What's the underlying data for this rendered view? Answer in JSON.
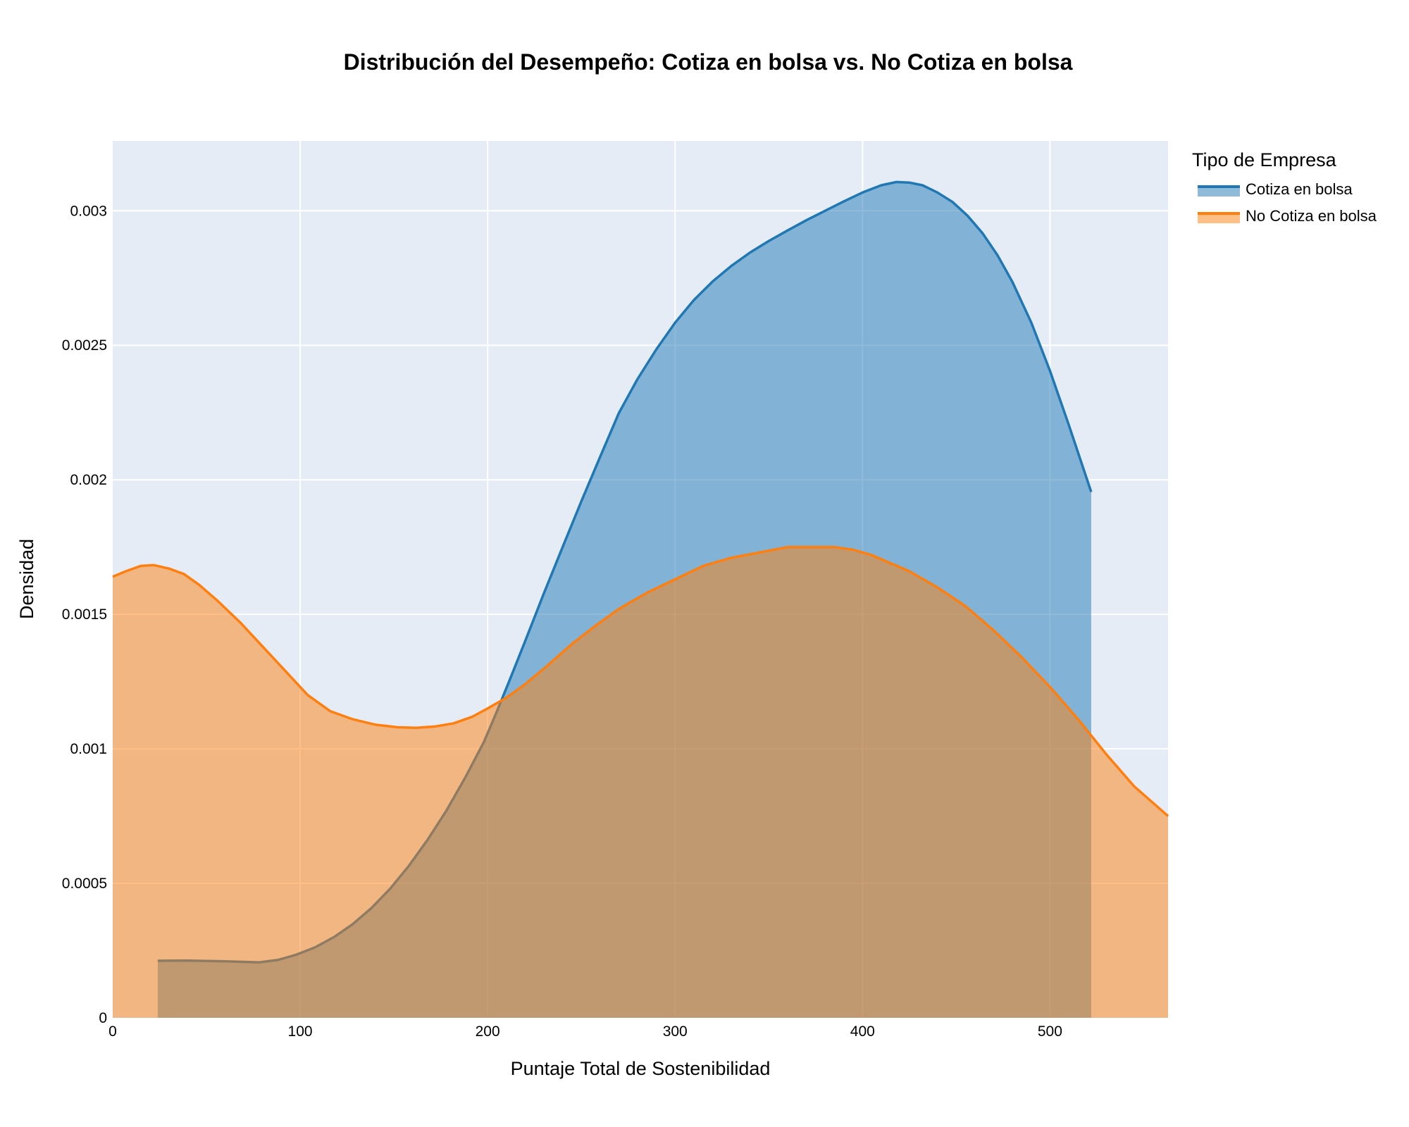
{
  "chart_data": {
    "type": "area",
    "title": "Distribución del Desempeño: Cotiza en bolsa vs. No Cotiza en bolsa",
    "xlabel": "Puntaje Total de Sostenibilidad",
    "ylabel": "Densidad",
    "xlim": [
      0,
      563
    ],
    "ylim": [
      0,
      0.00326
    ],
    "x_ticks": [
      0,
      100,
      200,
      300,
      400,
      500
    ],
    "x_tick_labels": [
      "0",
      "100",
      "200",
      "300",
      "400",
      "500"
    ],
    "y_ticks": [
      0,
      0.0005,
      0.001,
      0.0015,
      0.002,
      0.0025,
      0.003
    ],
    "y_tick_labels": [
      "0",
      "0.0005",
      "0.001",
      "0.0015",
      "0.002",
      "0.0025",
      "0.003"
    ],
    "grid": true,
    "plot_background": "#e5ecf6",
    "legend": {
      "title": "Tipo de Empresa",
      "placement": "right"
    },
    "series": [
      {
        "name": "Cotiza en bolsa",
        "color": "#1f77b4",
        "x": [
          24,
          40,
          60,
          78,
          88,
          98,
          108,
          118,
          128,
          138,
          148,
          158,
          168,
          178,
          188,
          198,
          205,
          212,
          220,
          230,
          240,
          250,
          260,
          270,
          280,
          290,
          300,
          310,
          320,
          330,
          340,
          350,
          360,
          370,
          380,
          390,
          400,
          410,
          418,
          425,
          432,
          440,
          448,
          456,
          464,
          472,
          480,
          490,
          500,
          510,
          522
        ],
        "y": [
          0.000212,
          0.000213,
          0.00021,
          0.000206,
          0.000215,
          0.000235,
          0.000262,
          0.0003,
          0.000348,
          0.000408,
          0.00048,
          0.000565,
          0.000662,
          0.00077,
          0.000892,
          0.001025,
          0.00114,
          0.00126,
          0.0014,
          0.001578,
          0.00175,
          0.00192,
          0.002085,
          0.002248,
          0.002375,
          0.002485,
          0.002584,
          0.002668,
          0.002737,
          0.002795,
          0.002845,
          0.002888,
          0.002927,
          0.002965,
          0.003,
          0.003035,
          0.003068,
          0.003095,
          0.003107,
          0.003105,
          0.003095,
          0.003068,
          0.003033,
          0.002982,
          0.002917,
          0.002835,
          0.002735,
          0.002585,
          0.002405,
          0.002205,
          0.001955
        ]
      },
      {
        "name": "No Cotiza en bolsa",
        "color": "#ff7f0e",
        "x": [
          0,
          7,
          15,
          22,
          30,
          38,
          46,
          56,
          68,
          80,
          92,
          104,
          116,
          128,
          140,
          152,
          162,
          172,
          182,
          192,
          200,
          210,
          220,
          232,
          245,
          258,
          270,
          285,
          300,
          315,
          330,
          345,
          360,
          375,
          385,
          395,
          405,
          415,
          425,
          440,
          455,
          470,
          485,
          500,
          515,
          530,
          545,
          563
        ],
        "y": [
          0.00164,
          0.00166,
          0.00168,
          0.001683,
          0.00167,
          0.00165,
          0.00161,
          0.00155,
          0.00147,
          0.00138,
          0.00129,
          0.0012,
          0.00114,
          0.00111,
          0.00109,
          0.00108,
          0.001078,
          0.001083,
          0.001095,
          0.00112,
          0.00115,
          0.00119,
          0.00124,
          0.00131,
          0.00139,
          0.00146,
          0.00152,
          0.00158,
          0.00163,
          0.00168,
          0.00171,
          0.00173,
          0.00175,
          0.00175,
          0.00175,
          0.00174,
          0.00172,
          0.00169,
          0.00166,
          0.0016,
          0.00153,
          0.00144,
          0.00134,
          0.00123,
          0.00111,
          0.00098,
          0.00086,
          0.00075
        ]
      }
    ]
  }
}
